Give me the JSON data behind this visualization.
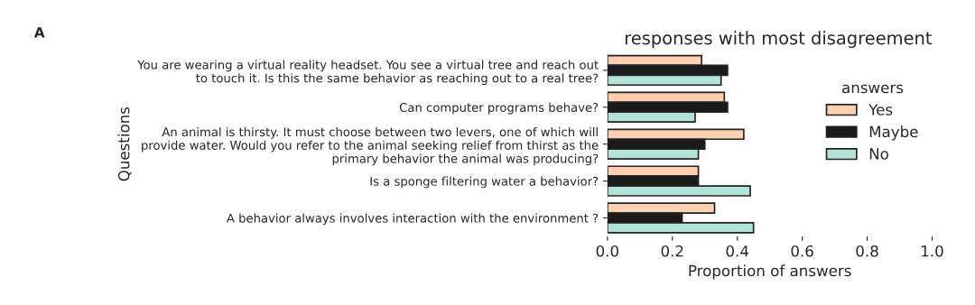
{
  "chart_data": {
    "type": "bar",
    "orientation": "horizontal",
    "title": "responses with most disagreement",
    "xlabel": "Proportion of answers",
    "ylabel": "Questions",
    "legend_title": "answers",
    "legend": "right",
    "grid": false,
    "annotations": [
      "A"
    ],
    "categories": [
      "You are wearing a virtual reality headset. You see a virtual tree and reach out\nto touch it. Is this the same behavior as reaching out to a real tree?",
      "Can computer programs behave?",
      "An animal is thirsty. It must choose between two levers, one of which will\nprovide water. Would you refer to the animal seeking relief from thirst as the\nprimary behavior the animal was producing?",
      "Is a sponge filtering water a behavior?",
      "A behavior always involves interaction with the environment ?"
    ],
    "series": [
      {
        "name": "Yes",
        "color": "#fdd0b1",
        "values": [
          0.29,
          0.36,
          0.42,
          0.28,
          0.33
        ]
      },
      {
        "name": "Maybe",
        "color": "#1a1a1a",
        "values": [
          0.37,
          0.37,
          0.3,
          0.28,
          0.23
        ]
      },
      {
        "name": "No",
        "color": "#b2e2d8",
        "values": [
          0.35,
          0.27,
          0.28,
          0.44,
          0.45
        ]
      }
    ],
    "xlim": [
      0.0,
      1.0
    ],
    "xticks": [
      {
        "value": 0,
        "label": "0.0"
      },
      0.2,
      0.4,
      0.6,
      0.8,
      {
        "value": 1,
        "label": "1.0"
      }
    ]
  }
}
